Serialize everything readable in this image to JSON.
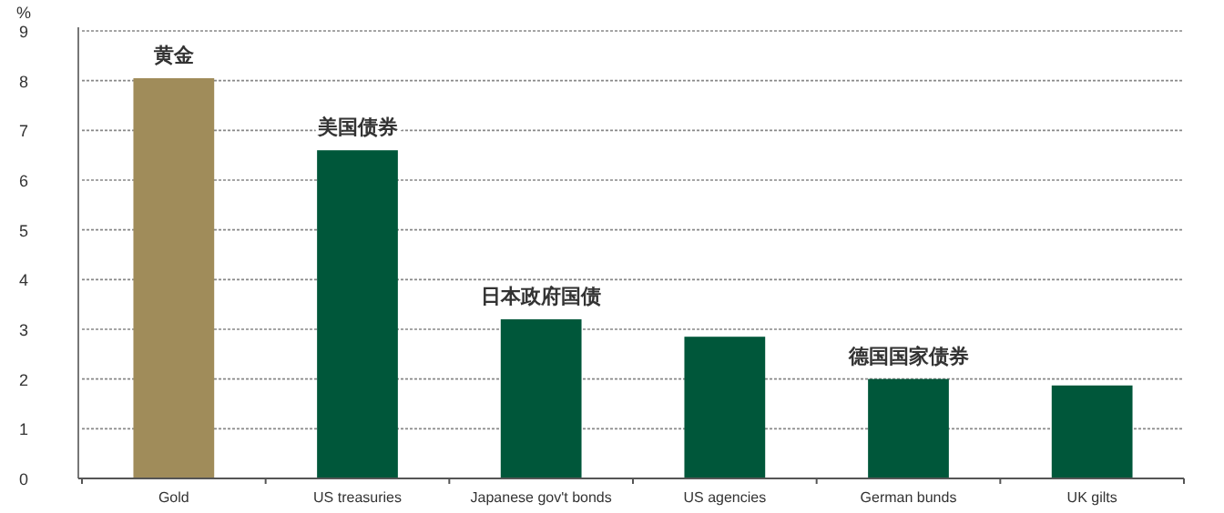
{
  "chart_data": {
    "type": "bar",
    "ylabel": "%",
    "categories": [
      "Gold",
      "US treasuries",
      "Japanese gov't bonds",
      "US agencies",
      "German bunds",
      "UK gilts"
    ],
    "values": [
      8.05,
      6.6,
      3.2,
      2.85,
      2.0,
      1.87
    ],
    "colors": [
      "#a08c5a",
      "#00573a",
      "#00573a",
      "#00573a",
      "#00573a",
      "#00573a"
    ],
    "ylim": [
      0,
      9
    ],
    "yticks": [
      0,
      1,
      2,
      3,
      4,
      5,
      6,
      7,
      8,
      9
    ],
    "grid": "y",
    "annotations": [
      {
        "text": "黄金",
        "x": "Gold",
        "y": 8.05
      },
      {
        "text": "美国债券",
        "x": "US treasuries",
        "y": 6.6
      },
      {
        "text": "日本政府国债",
        "x": "Japanese gov't bonds",
        "y": 3.2
      },
      {
        "text": "德国国家债券",
        "x": "German bunds",
        "y": 2.0
      }
    ]
  }
}
